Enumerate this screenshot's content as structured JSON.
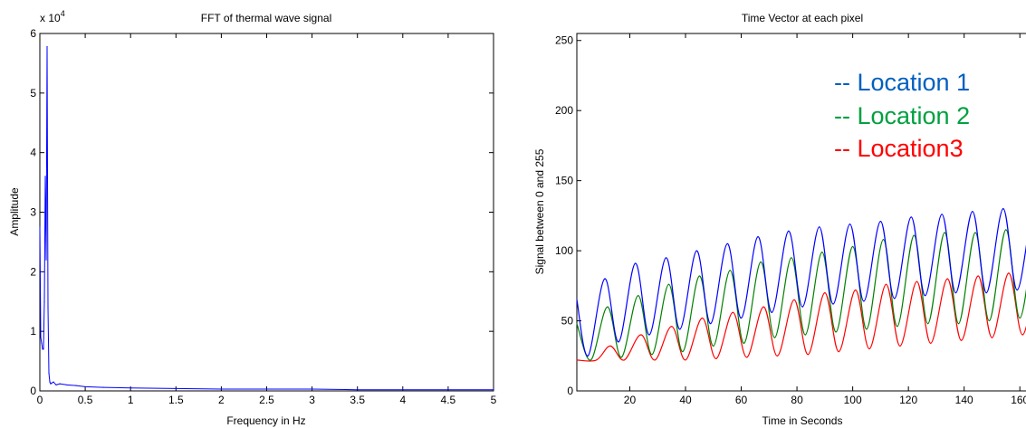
{
  "colors": {
    "trace": "#0000ff",
    "loc1": "#0060c0",
    "loc2": "#00a040",
    "loc3": "#ff0000",
    "green_line": "#008000"
  },
  "chart_data": [
    {
      "type": "line",
      "title": "FFT of thermal wave signal",
      "xlabel": "Frequency in Hz",
      "ylabel": "Amplitude",
      "y_multiplier": "x 10",
      "y_multiplier_exp": "4",
      "xlim": [
        0,
        5
      ],
      "ylim": [
        0,
        6
      ],
      "x_ticks": [
        "0",
        "0.5",
        "1",
        "1.5",
        "2",
        "2.5",
        "3",
        "3.5",
        "4",
        "4.5",
        "5"
      ],
      "y_ticks": [
        "0",
        "1",
        "2",
        "3",
        "4",
        "5",
        "6"
      ],
      "series": [
        {
          "x": [
            0,
            0.01,
            0.02,
            0.03,
            0.04,
            0.05,
            0.06,
            0.07,
            0.08,
            0.09,
            0.1,
            0.11,
            0.12,
            0.13,
            0.15,
            0.18,
            0.22,
            0.3,
            0.4,
            0.5,
            0.7,
            1.0,
            1.5,
            2.0,
            2.5,
            3.0,
            3.5,
            4.0,
            4.5,
            5.0
          ],
          "y": [
            2.75,
            0.9,
            0.8,
            0.7,
            0.7,
            1.5,
            3.6,
            2.2,
            5.78,
            1.4,
            0.3,
            0.15,
            0.12,
            0.13,
            0.15,
            0.1,
            0.12,
            0.1,
            0.09,
            0.07,
            0.06,
            0.05,
            0.04,
            0.03,
            0.03,
            0.03,
            0.02,
            0.02,
            0.02,
            0.02
          ]
        }
      ]
    },
    {
      "type": "line",
      "title": "Time Vector at each pixel",
      "xlabel": "Time in Seconds",
      "ylabel": "Signal between 0 and 255",
      "xlim": [
        1,
        170
      ],
      "ylim": [
        0,
        255
      ],
      "x_ticks": [
        "20",
        "40",
        "60",
        "80",
        "100",
        "120",
        "140",
        "160"
      ],
      "y_ticks": [
        "0",
        "50",
        "100",
        "150",
        "200",
        "250"
      ],
      "period": 11,
      "series": [
        {
          "name": "-- Location 1",
          "x": [
            1,
            5,
            11,
            16,
            22,
            27,
            33,
            38,
            44,
            49,
            55,
            60,
            66,
            71,
            77,
            82,
            88,
            93,
            99,
            104,
            110,
            115,
            121,
            126,
            132,
            137,
            143,
            148,
            154,
            159,
            165,
            170
          ],
          "y": [
            65,
            25,
            80,
            35,
            91,
            40,
            95,
            44,
            100,
            48,
            105,
            52,
            110,
            56,
            114,
            60,
            117,
            62,
            119,
            64,
            121,
            66,
            124,
            68,
            126,
            70,
            128,
            70,
            130,
            72,
            131,
            110
          ]
        },
        {
          "name": "-- Location 2",
          "x": [
            1,
            6,
            12,
            17,
            23,
            28,
            34,
            39,
            45,
            50,
            56,
            61,
            67,
            72,
            78,
            83,
            89,
            94,
            100,
            105,
            111,
            116,
            122,
            127,
            133,
            138,
            144,
            149,
            155,
            160,
            166,
            170
          ],
          "y": [
            48,
            22,
            60,
            24,
            68,
            26,
            76,
            28,
            82,
            32,
            86,
            34,
            92,
            38,
            95,
            40,
            99,
            42,
            103,
            44,
            108,
            46,
            111,
            48,
            113,
            48,
            113,
            50,
            115,
            52,
            117,
            90
          ]
        },
        {
          "name": "-- Location3",
          "x": [
            1,
            8,
            13,
            18,
            24,
            29,
            35,
            40,
            46,
            51,
            57,
            62,
            68,
            73,
            79,
            84,
            90,
            95,
            101,
            106,
            112,
            117,
            123,
            128,
            134,
            139,
            145,
            150,
            156,
            161,
            167,
            170
          ],
          "y": [
            22,
            22,
            32,
            22,
            40,
            22,
            46,
            22,
            52,
            23,
            56,
            24,
            60,
            25,
            65,
            26,
            70,
            28,
            72,
            30,
            76,
            32,
            78,
            34,
            80,
            36,
            82,
            38,
            84,
            40,
            88,
            60
          ]
        }
      ]
    }
  ]
}
